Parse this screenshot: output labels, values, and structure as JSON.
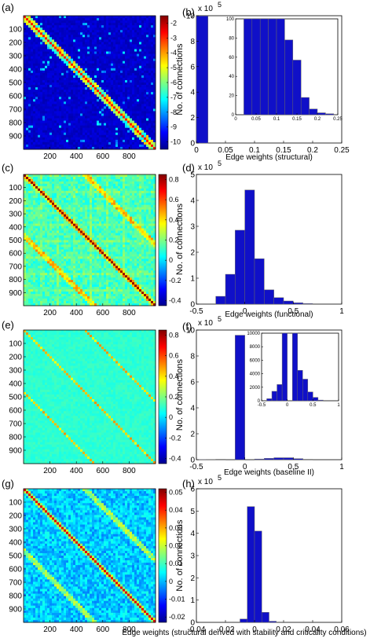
{
  "panel_labels": {
    "a": "(a)",
    "b": "(b)",
    "c": "(c)",
    "d": "(d)",
    "e": "(e)",
    "f": "(f)",
    "g": "(g)",
    "h": "(h)"
  },
  "chart_data": [
    {
      "id": "a",
      "type": "heatmap",
      "xticks": [
        "200",
        "400",
        "600",
        "800"
      ],
      "yticks": [
        "100",
        "200",
        "300",
        "400",
        "500",
        "600",
        "700",
        "800",
        "900"
      ],
      "colorbar": {
        "ticks": [
          "-2",
          "-3",
          "-4",
          "-5",
          "-6",
          "-7",
          "-8",
          "-9",
          "-10"
        ],
        "range": [
          -10.5,
          -1.5
        ],
        "colormap": "jet"
      },
      "pattern": "structural"
    },
    {
      "id": "b",
      "type": "bar",
      "xlabel": "Edge weights (structural)",
      "ylabel": "No. of connections",
      "multiplier": "x 10",
      "multiplier_exp": "5",
      "xticks": [
        "0",
        "0.05",
        "0.1",
        "0.15",
        "0.2",
        "0.25"
      ],
      "xlim": [
        0,
        0.25
      ],
      "yticks": [
        "0",
        "2",
        "4",
        "6",
        "8",
        "10"
      ],
      "ylim": [
        0,
        10
      ],
      "bins": [
        [
          0,
          0.02
        ]
      ],
      "values": [
        9.98
      ],
      "inset": {
        "xticks": [
          "0",
          "0.05",
          "0.1",
          "0.15",
          "0.2",
          "0.25"
        ],
        "xlim": [
          0,
          0.25
        ],
        "yticks": [
          "0",
          "20",
          "40",
          "60",
          "80",
          "100"
        ],
        "ylim": [
          0,
          100
        ],
        "bins": [
          [
            0.02,
            0.04
          ],
          [
            0.04,
            0.06
          ],
          [
            0.06,
            0.08
          ],
          [
            0.08,
            0.1
          ],
          [
            0.1,
            0.12
          ],
          [
            0.12,
            0.14
          ],
          [
            0.14,
            0.16
          ],
          [
            0.16,
            0.18
          ],
          [
            0.18,
            0.2
          ],
          [
            0.2,
            0.22
          ],
          [
            0.22,
            0.24
          ]
        ],
        "values": [
          100,
          100,
          100,
          100,
          100,
          78,
          57,
          18,
          6,
          2,
          1
        ]
      }
    },
    {
      "id": "c",
      "type": "heatmap",
      "xticks": [
        "200",
        "400",
        "600",
        "800"
      ],
      "yticks": [
        "100",
        "200",
        "300",
        "400",
        "500",
        "600",
        "700",
        "800",
        "900"
      ],
      "colorbar": {
        "ticks": [
          "0.8",
          "0.6",
          "0.4",
          "0.2",
          "0",
          "-0.2",
          "-0.4"
        ],
        "range": [
          -0.45,
          0.85
        ],
        "colormap": "jet"
      },
      "pattern": "functional"
    },
    {
      "id": "d",
      "type": "bar",
      "xlabel": "Edge weights (functional)",
      "ylabel": "No. of connections",
      "multiplier": "x 10",
      "multiplier_exp": "5",
      "xticks": [
        "-0.5",
        "0",
        "0.5",
        "1"
      ],
      "xlim": [
        -0.5,
        1
      ],
      "yticks": [
        "0",
        "1",
        "2",
        "3",
        "4",
        "5"
      ],
      "ylim": [
        0,
        5
      ],
      "bins": [
        [
          -0.3,
          -0.2
        ],
        [
          -0.2,
          -0.1
        ],
        [
          -0.1,
          0
        ],
        [
          0,
          0.1
        ],
        [
          0.1,
          0.2
        ],
        [
          0.2,
          0.3
        ],
        [
          0.3,
          0.4
        ],
        [
          0.4,
          0.5
        ],
        [
          0.5,
          0.6
        ],
        [
          0.6,
          0.7
        ]
      ],
      "values": [
        0.3,
        1.15,
        2.85,
        4.4,
        1.75,
        0.55,
        0.25,
        0.12,
        0.05,
        0.02
      ]
    },
    {
      "id": "e",
      "type": "heatmap",
      "xticks": [
        "200",
        "400",
        "600",
        "800"
      ],
      "yticks": [
        "100",
        "200",
        "300",
        "400",
        "500",
        "600",
        "700",
        "800",
        "900"
      ],
      "colorbar": {
        "ticks": [
          "0.8",
          "0.6",
          "0.4",
          "0.2",
          "0",
          "-0.2",
          "-0.4"
        ],
        "range": [
          -0.45,
          0.85
        ],
        "colormap": "jet"
      },
      "pattern": "baseline"
    },
    {
      "id": "f",
      "type": "bar",
      "xlabel": "Edge weights (baseline II)",
      "ylabel": "No. of connections",
      "multiplier": "x 10",
      "multiplier_exp": "5",
      "xticks": [
        "-0.5",
        "0",
        "0.5",
        "1"
      ],
      "xlim": [
        -0.5,
        1
      ],
      "yticks": [
        "0",
        "2",
        "4",
        "6",
        "8",
        "10"
      ],
      "ylim": [
        0,
        10
      ],
      "bins": [
        [
          -0.5,
          -0.4
        ],
        [
          -0.4,
          -0.3
        ],
        [
          -0.3,
          -0.2
        ],
        [
          -0.1,
          0
        ],
        [
          0.1,
          0.2
        ],
        [
          0.2,
          0.3
        ],
        [
          0.3,
          0.4
        ],
        [
          0.4,
          0.5
        ],
        [
          0.5,
          0.6
        ],
        [
          0.6,
          0.7
        ]
      ],
      "values": [
        0.01,
        0.02,
        0.03,
        9.6,
        0.05,
        0.1,
        0.15,
        0.15,
        0.08,
        0.03
      ],
      "inset": {
        "xticks": [
          "-0.5",
          "0",
          "0.5",
          "1"
        ],
        "xlim": [
          -0.5,
          1
        ],
        "yticks": [
          "0",
          "2000",
          "4000",
          "6000",
          "8000",
          "10000"
        ],
        "ylim": [
          0,
          10000
        ],
        "bins": [
          [
            -0.4,
            -0.3
          ],
          [
            -0.3,
            -0.2
          ],
          [
            -0.2,
            -0.1
          ],
          [
            -0.1,
            0
          ],
          [
            0.1,
            0.2
          ],
          [
            0.2,
            0.3
          ],
          [
            0.3,
            0.4
          ],
          [
            0.4,
            0.5
          ],
          [
            0.5,
            0.6
          ],
          [
            0.6,
            0.7
          ]
        ],
        "values": [
          300,
          1400,
          2400,
          10000,
          10000,
          4500,
          3200,
          1300,
          500,
          100
        ]
      }
    },
    {
      "id": "g",
      "type": "heatmap",
      "xticks": [
        "200",
        "400",
        "600",
        "800"
      ],
      "yticks": [
        "100",
        "200",
        "300",
        "400",
        "500",
        "600",
        "700",
        "800",
        "900"
      ],
      "colorbar": {
        "ticks": [
          "0.05",
          "0.04",
          "0.03",
          "0.02",
          "0.01",
          "0",
          "-0.01",
          "-0.02"
        ],
        "range": [
          -0.023,
          0.052
        ],
        "colormap": "jet"
      },
      "pattern": "derived"
    },
    {
      "id": "h",
      "type": "bar",
      "xlabel": "Edge weights (structural derived with stability and criticality conditions)",
      "ylabel": "No. of connections",
      "multiplier": "x 10",
      "multiplier_exp": "5",
      "xticks": [
        "-0.04",
        "-0.02",
        "0",
        "0.02",
        "0.04",
        "0.06"
      ],
      "xlim": [
        -0.04,
        0.06
      ],
      "yticks": [
        "0",
        "1",
        "2",
        "3",
        "4",
        "5",
        "6"
      ],
      "ylim": [
        0,
        6
      ],
      "bins": [
        [
          -0.01,
          -0.005
        ],
        [
          -0.005,
          0
        ],
        [
          0,
          0.005
        ],
        [
          0.005,
          0.01
        ],
        [
          0.01,
          0.015
        ]
      ],
      "values": [
        0.15,
        5.2,
        4.1,
        0.45,
        0.05
      ]
    }
  ]
}
